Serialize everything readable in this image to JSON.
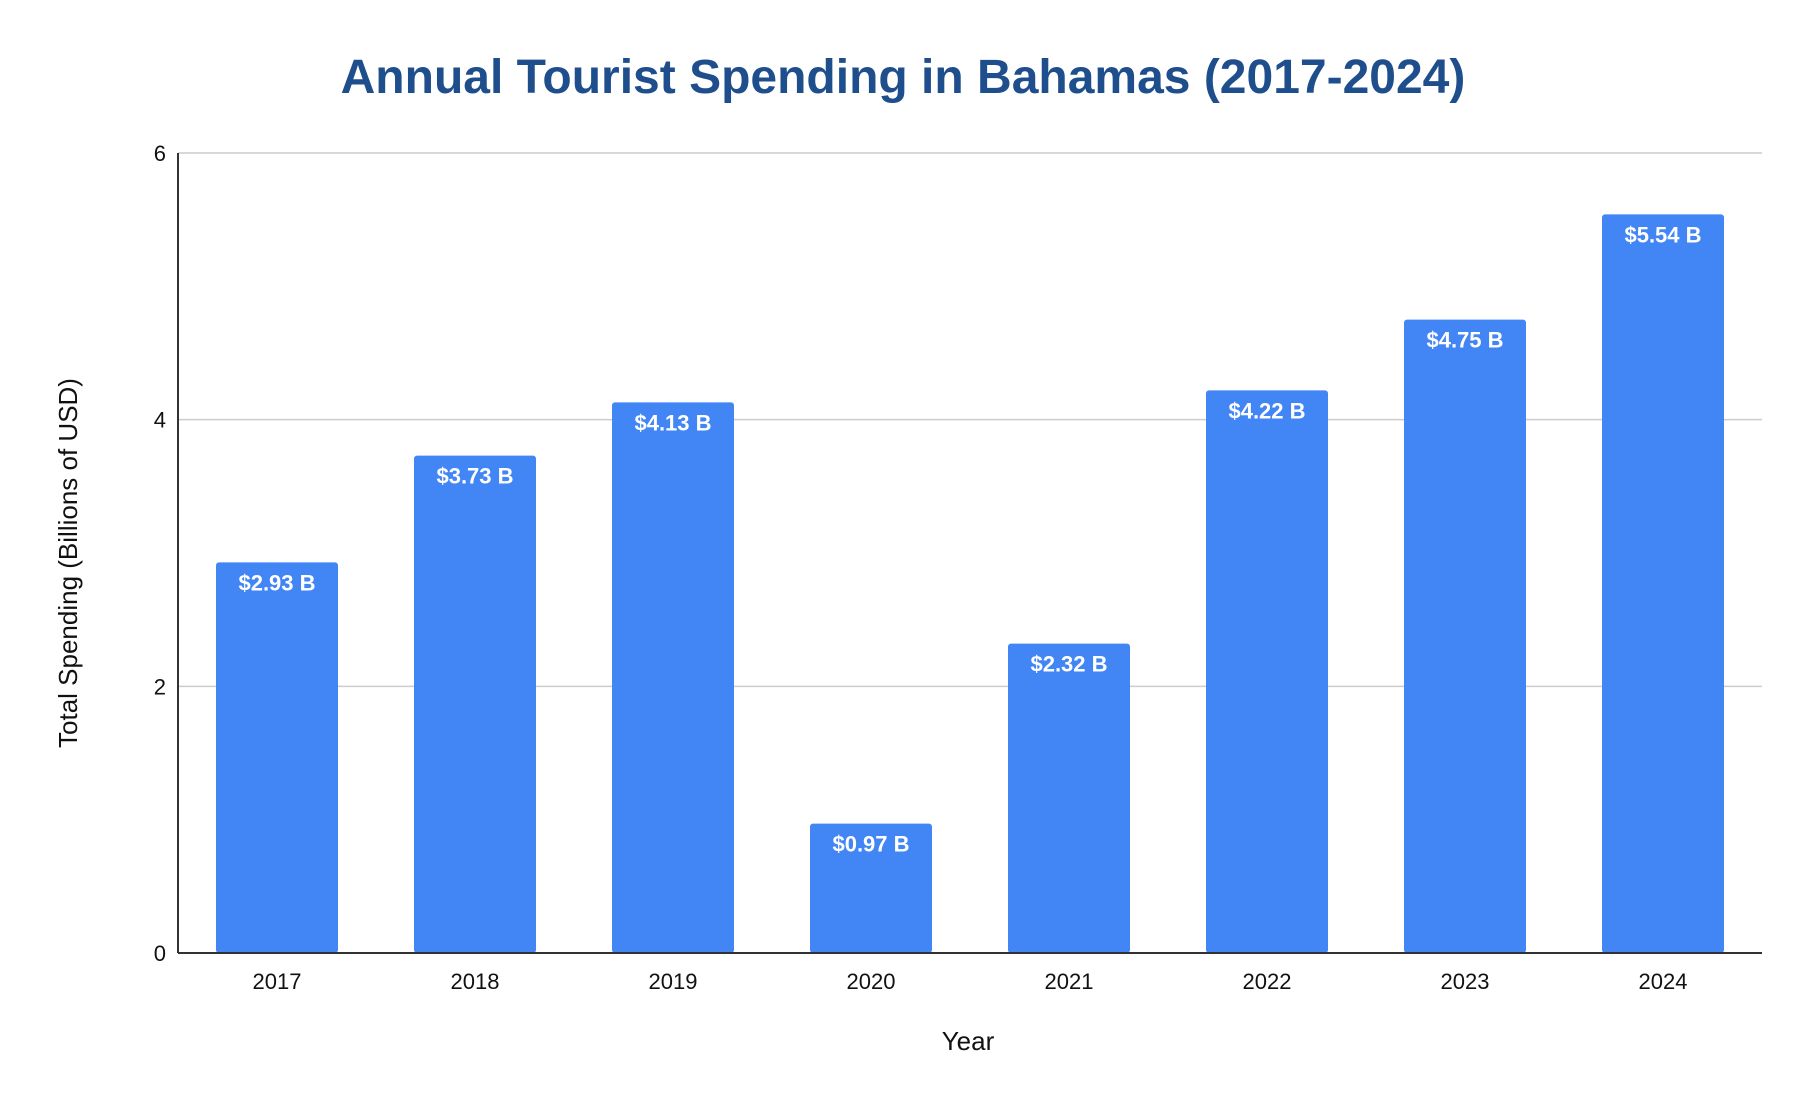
{
  "chart_data": {
    "type": "bar",
    "title": "Annual Tourist Spending in Bahamas (2017-2024)",
    "xlabel": "Year",
    "ylabel": "Total Spending (Billions of USD)",
    "categories": [
      "2017",
      "2018",
      "2019",
      "2020",
      "2021",
      "2022",
      "2023",
      "2024"
    ],
    "values": [
      2.93,
      3.73,
      4.13,
      0.97,
      2.32,
      4.22,
      4.75,
      5.54
    ],
    "data_labels": [
      "$2.93 B",
      "$3.73 B",
      "$4.13 B",
      "$0.97 B",
      "$2.32 B",
      "$4.22 B",
      "$4.75 B",
      "$5.54 B"
    ],
    "ylim": [
      0,
      6
    ],
    "yticks": [
      "0",
      "2",
      "4",
      "6"
    ],
    "ytick_values": [
      0,
      2,
      4,
      6
    ],
    "grid": true,
    "legend": "none",
    "colors": {
      "bar": "#4285f4",
      "title": "#1f4e8c",
      "grid": "#cccccc",
      "axis": "#333333"
    }
  }
}
